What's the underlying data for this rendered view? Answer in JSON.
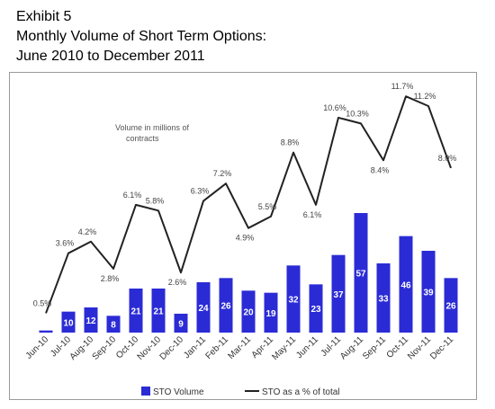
{
  "header": {
    "exhibit": "Exhibit 5",
    "title_line1": "Monthly Volume of Short Term Options:",
    "title_line2": "June 2010 to December 2011"
  },
  "chart_data": {
    "type": "bar",
    "categories": [
      "Jun-10",
      "Jul-10",
      "Aug-10",
      "Sep-10",
      "Oct-10",
      "Nov-10",
      "Dec-10",
      "Jan-11",
      "Feb-11",
      "Mar-11",
      "Apr-11",
      "May-11",
      "Jun-11",
      "Jul-11",
      "Aug-11",
      "Sep-11",
      "Oct-11",
      "Nov-11",
      "Dec-11"
    ],
    "series": [
      {
        "name": "STO Volume",
        "kind": "bar",
        "color": "#2b2bd6",
        "values": [
          1,
          10,
          12,
          8,
          21,
          21,
          9,
          24,
          26,
          20,
          19,
          32,
          23,
          37,
          57,
          33,
          46,
          39,
          26
        ],
        "labels": [
          "1",
          "10",
          "12",
          "8",
          "21",
          "21",
          "9",
          "24",
          "26",
          "20",
          "19",
          "32",
          "23",
          "37",
          "57",
          "33",
          "46",
          "39",
          "26"
        ]
      },
      {
        "name": "STO as a % of total",
        "kind": "line",
        "color": "#222222",
        "values": [
          0.5,
          3.6,
          4.2,
          2.8,
          6.1,
          5.8,
          2.6,
          6.3,
          7.2,
          4.9,
          5.5,
          8.8,
          6.1,
          10.6,
          10.3,
          8.4,
          11.7,
          11.2,
          8.0
        ],
        "labels": [
          "0.5%",
          "3.6%",
          "4.2%",
          "2.8%",
          "6.1%",
          "5.8%",
          "2.6%",
          "6.3%",
          "7.2%",
          "4.9%",
          "5.5%",
          "8.8%",
          "6.1%",
          "10.6%",
          "10.3%",
          "8.4%",
          "11.7%",
          "11.2%",
          "8.0%"
        ]
      }
    ],
    "annotation_line1": "Volume in millions of",
    "annotation_line2": "contracts",
    "legend": "bottom",
    "grid": false,
    "bar_ylim": [
      0,
      120
    ],
    "line_ylim": [
      -0.5,
      12.5
    ]
  }
}
